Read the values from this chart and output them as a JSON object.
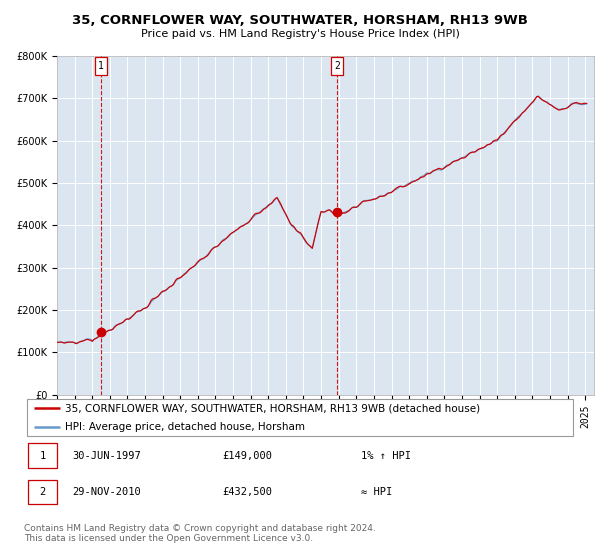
{
  "title": "35, CORNFLOWER WAY, SOUTHWATER, HORSHAM, RH13 9WB",
  "subtitle": "Price paid vs. HM Land Registry's House Price Index (HPI)",
  "ylim": [
    0,
    800000
  ],
  "yticks": [
    0,
    100000,
    200000,
    300000,
    400000,
    500000,
    600000,
    700000,
    800000
  ],
  "ytick_labels": [
    "£0",
    "£100K",
    "£200K",
    "£300K",
    "£400K",
    "£500K",
    "£600K",
    "£700K",
    "£800K"
  ],
  "bg_color": "#dce6f1",
  "line_color": "#cc0000",
  "hpi_line_color": "#6699cc",
  "sale1_date": 1997.5,
  "sale1_price": 149000,
  "sale2_date": 2010.917,
  "sale2_price": 432500,
  "legend_label_sale": "35, CORNFLOWER WAY, SOUTHWATER, HORSHAM, RH13 9WB (detached house)",
  "legend_label_hpi": "HPI: Average price, detached house, Horsham",
  "footer_text": "Contains HM Land Registry data © Crown copyright and database right 2024.\nThis data is licensed under the Open Government Licence v3.0.",
  "table_rows": [
    [
      "1",
      "30-JUN-1997",
      "£149,000",
      "1% ↑ HPI"
    ],
    [
      "2",
      "29-NOV-2010",
      "£432,500",
      "≈ HPI"
    ]
  ],
  "xlim_left": 1995.0,
  "xlim_right": 2025.5,
  "xtick_start": 1995,
  "xtick_end": 2025,
  "title_fontsize": 9.5,
  "subtitle_fontsize": 8,
  "tick_fontsize": 7,
  "legend_fontsize": 7.5,
  "table_fontsize": 7.5,
  "footer_fontsize": 6.5
}
